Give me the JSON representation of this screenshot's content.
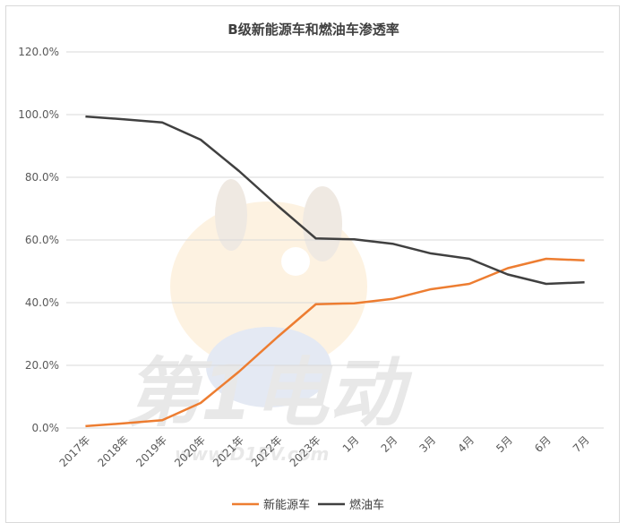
{
  "chart_data": {
    "type": "line",
    "title": "B级新能源车和燃油车渗透率",
    "categories": [
      "2017年",
      "2018年",
      "2019年",
      "2020年",
      "2021年",
      "2022年",
      "2023年",
      "1月",
      "2月",
      "3月",
      "4月",
      "5月",
      "6月",
      "7月"
    ],
    "ylim": [
      0,
      120
    ],
    "yticks": [
      "0.0%",
      "20.0%",
      "40.0%",
      "60.0%",
      "80.0%",
      "100.0%",
      "120.0%"
    ],
    "grid": true,
    "legend_position": "bottom",
    "series": [
      {
        "name": "新能源车",
        "color": "#ED7D31",
        "values": [
          0.6,
          1.5,
          2.5,
          8.0,
          18.0,
          29.0,
          39.5,
          39.8,
          41.2,
          44.3,
          46.0,
          51.0,
          54.0,
          53.5
        ]
      },
      {
        "name": "燃油车",
        "color": "#404040",
        "values": [
          99.4,
          98.5,
          97.5,
          92.0,
          82.0,
          71.0,
          60.5,
          60.2,
          58.8,
          55.7,
          54.0,
          49.0,
          46.0,
          46.5
        ]
      }
    ]
  },
  "watermark": {
    "logo_text": "第1电动",
    "url_text": "www.D1EV.com"
  }
}
